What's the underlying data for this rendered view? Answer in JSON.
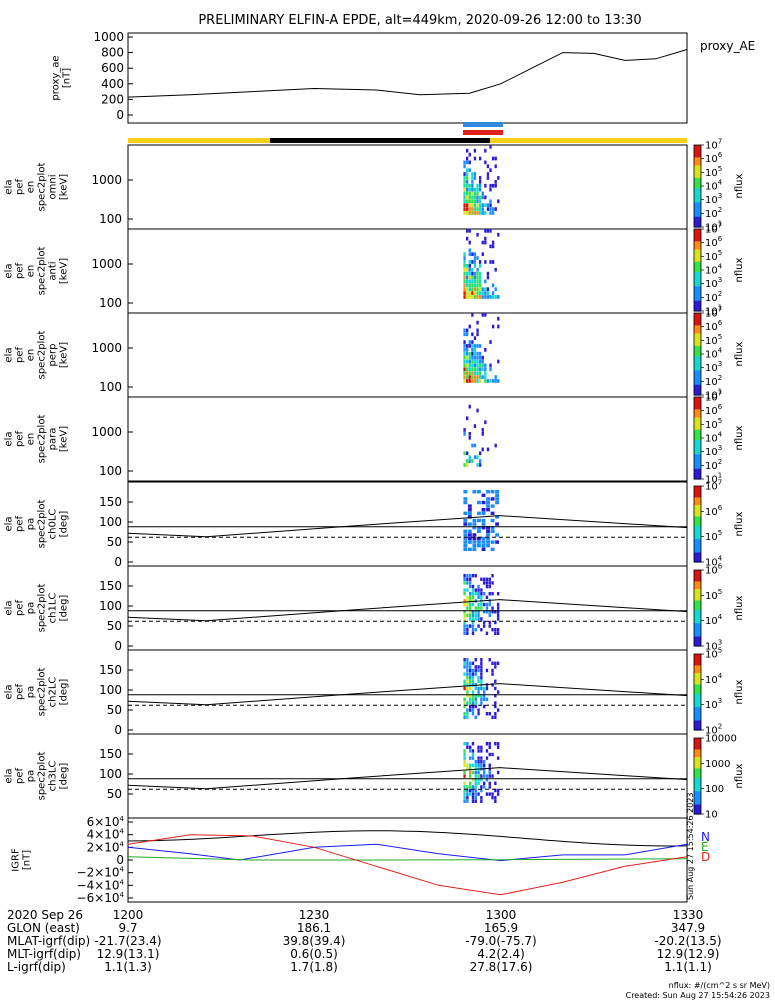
{
  "title": "PRELIMINARY ELFIN-A EPDE, alt=449km, 2020-09-26 12:00 to 13:30",
  "proxy_ae": {
    "ylabel": [
      "proxy_ae",
      "[nT]"
    ],
    "legend": "proxy_AE",
    "yticks": [
      "1000",
      "800",
      "600",
      "400",
      "200",
      "0"
    ]
  },
  "bars": {
    "orbit": {
      "yellow": "#f7d117",
      "black": "#000000"
    },
    "upper_blue": "#2f8be0",
    "lower_red": "#e0221a"
  },
  "spec_panels": [
    {
      "ylabel": [
        "ela",
        "pef",
        "en",
        "spec2plot",
        "omni",
        "[keV]"
      ],
      "yticks": [
        "1000",
        "100"
      ],
      "cb_ticks": [
        "10^7",
        "10^6",
        "10^5",
        "10^4",
        "10^3",
        "10^2",
        "10^1"
      ],
      "cb_label": "nflux"
    },
    {
      "ylabel": [
        "ela",
        "pef",
        "en",
        "spec2plot",
        "anti",
        "[keV]"
      ],
      "yticks": [
        "1000",
        "100"
      ],
      "cb_ticks": [
        "10^7",
        "10^6",
        "10^5",
        "10^4",
        "10^3",
        "10^2",
        "10^1"
      ],
      "cb_label": "nflux"
    },
    {
      "ylabel": [
        "ela",
        "pef",
        "en",
        "spec2plot",
        "perp",
        "[keV]"
      ],
      "yticks": [
        "1000",
        "100"
      ],
      "cb_ticks": [
        "10^7",
        "10^6",
        "10^5",
        "10^4",
        "10^3",
        "10^2",
        "10^1"
      ],
      "cb_label": "nflux"
    },
    {
      "ylabel": [
        "ela",
        "pef",
        "en",
        "spec2plot",
        "para",
        "[keV]"
      ],
      "yticks": [
        "1000",
        "100"
      ],
      "cb_ticks": [
        "10^7",
        "10^6",
        "10^5",
        "10^4",
        "10^3",
        "10^2",
        "10^1"
      ],
      "cb_label": "nflux"
    }
  ],
  "pa_panels": [
    {
      "ylabel": [
        "ela",
        "pef",
        "pa",
        "spec2plot",
        "ch0LC",
        "[deg]"
      ],
      "yticks": [
        "150",
        "100",
        "50",
        "0"
      ],
      "cb_ticks": [
        "10^7",
        "10^6",
        "10^5",
        "10^4"
      ],
      "cb_label": "nflux"
    },
    {
      "ylabel": [
        "ela",
        "pef",
        "pa",
        "spec2plot",
        "ch1LC",
        "[deg]"
      ],
      "yticks": [
        "150",
        "100",
        "50",
        "0"
      ],
      "cb_ticks": [
        "10^6",
        "10^5",
        "10^4",
        "10^3"
      ],
      "cb_label": "nflux"
    },
    {
      "ylabel": [
        "ela",
        "pef",
        "pa",
        "spec2plot",
        "ch2LC",
        "[deg]"
      ],
      "yticks": [
        "150",
        "100",
        "50",
        "0"
      ],
      "cb_ticks": [
        "10^5",
        "10^4",
        "10^3",
        "10^2"
      ],
      "cb_label": "nflux"
    },
    {
      "ylabel": [
        "ela",
        "pef",
        "pa",
        "spec2plot",
        "ch3LC",
        "[deg]"
      ],
      "yticks": [
        "150",
        "100",
        "50"
      ],
      "cb_ticks": [
        "10000",
        "1000",
        "100",
        "10"
      ],
      "cb_label": "nflux"
    }
  ],
  "igrf": {
    "ylabel": [
      "IGRF",
      "[nT]"
    ],
    "yticks": [
      "6×10^4",
      "4×10^4",
      "2×10^4",
      "0",
      "−2×10^4",
      "−4×10^4",
      "−6×10^4"
    ],
    "legend": [
      "N",
      "E",
      "D"
    ],
    "legend_colors": [
      "#1a1aff",
      "#22aa22",
      "#e0221a"
    ],
    "stamp": "Sun Aug 27 15:54:26 2023"
  },
  "footer": {
    "rows": [
      {
        "label": "2020 Sep 26",
        "vals": [
          "1200",
          "1230",
          "1300",
          "1330"
        ]
      },
      {
        "label": "GLON (east)",
        "vals": [
          "9.7",
          "186.1",
          "165.9",
          "347.9"
        ]
      },
      {
        "label": "MLAT-igrf(dip)",
        "vals": [
          "-21.7(23.4)",
          "39.8(39.4)",
          "-79.0(-75.7)",
          "-20.2(13.5)"
        ]
      },
      {
        "label": "MLT-igrf(dip)",
        "vals": [
          "12.9(13.1)",
          "0.6(0.5)",
          "4.2(2.4)",
          "12.9(12.9)"
        ]
      },
      {
        "label": "L-igrf(dip)",
        "vals": [
          "1.1(1.3)",
          "1.7(1.8)",
          "27.8(17.6)",
          "1.1(1.1)"
        ]
      }
    ],
    "units": "nflux: #/(cm^2 s sr MeV)",
    "created": "Created: Sun Aug 27 15:54:26 2023"
  },
  "chart_data": {
    "type": "line",
    "x_range": [
      "12:00",
      "13:30"
    ],
    "series": [
      {
        "name": "proxy_AE",
        "x": [
          "12:00",
          "12:10",
          "12:20",
          "12:30",
          "12:40",
          "12:47",
          "12:55",
          "13:00",
          "13:05",
          "13:10",
          "13:15",
          "13:20",
          "13:25",
          "13:30"
        ],
        "y": [
          230,
          260,
          300,
          340,
          320,
          260,
          280,
          400,
          600,
          800,
          790,
          700,
          720,
          840
        ],
        "ylim": [
          0,
          1000
        ]
      },
      {
        "name": "N",
        "x": [
          "12:00",
          "12:10",
          "12:18",
          "12:30",
          "12:40",
          "12:50",
          "13:00",
          "13:10",
          "13:20",
          "13:30"
        ],
        "y": [
          20000,
          10000,
          0,
          20000,
          25000,
          10000,
          -1000,
          8000,
          8000,
          25000
        ],
        "ylim": [
          -60000,
          60000
        ]
      },
      {
        "name": "E",
        "x": [
          "12:00",
          "12:20",
          "12:40",
          "13:00",
          "13:10",
          "13:30"
        ],
        "y": [
          5000,
          0,
          0,
          500,
          1000,
          2000
        ],
        "ylim": [
          -60000,
          60000
        ]
      },
      {
        "name": "D",
        "x": [
          "12:00",
          "12:10",
          "12:20",
          "12:30",
          "12:40",
          "12:50",
          "13:00",
          "13:10",
          "13:20",
          "13:30"
        ],
        "y": [
          25000,
          40000,
          38000,
          20000,
          -10000,
          -40000,
          -55000,
          -35000,
          -10000,
          5000
        ],
        "ylim": [
          -60000,
          60000
        ]
      }
    ]
  }
}
